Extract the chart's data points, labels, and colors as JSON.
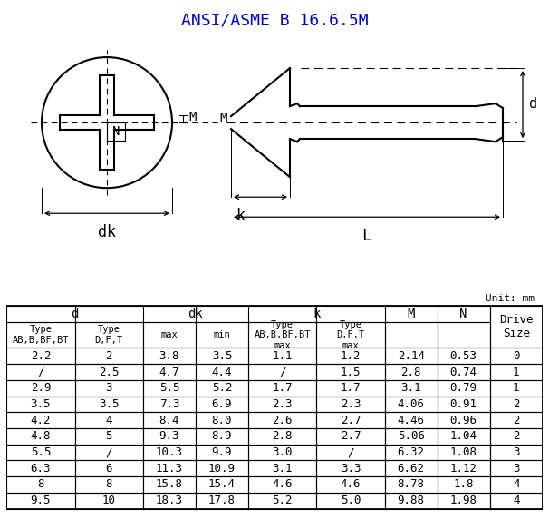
{
  "title": "ANSI/ASME B 16.6.5M",
  "title_color": "#0000CC",
  "unit_text": "Unit: mm",
  "background_color": "#FFFFFF",
  "table_data": [
    [
      "2.2",
      "2",
      "3.8",
      "3.5",
      "1.1",
      "1.2",
      "2.14",
      "0.53",
      "0"
    ],
    [
      "/",
      "2.5",
      "4.7",
      "4.4",
      "/",
      "1.5",
      "2.8",
      "0.74",
      "1"
    ],
    [
      "2.9",
      "3",
      "5.5",
      "5.2",
      "1.7",
      "1.7",
      "3.1",
      "0.79",
      "1"
    ],
    [
      "3.5",
      "3.5",
      "7.3",
      "6.9",
      "2.3",
      "2.3",
      "4.06",
      "0.91",
      "2"
    ],
    [
      "4.2",
      "4",
      "8.4",
      "8.0",
      "2.6",
      "2.7",
      "4.46",
      "0.96",
      "2"
    ],
    [
      "4.8",
      "5",
      "9.3",
      "8.9",
      "2.8",
      "2.7",
      "5.06",
      "1.04",
      "2"
    ],
    [
      "5.5",
      "/",
      "10.3",
      "9.9",
      "3.0",
      "/",
      "6.32",
      "1.08",
      "3"
    ],
    [
      "6.3",
      "6",
      "11.3",
      "10.9",
      "3.1",
      "3.3",
      "6.62",
      "1.12",
      "3"
    ],
    [
      "8",
      "8",
      "15.8",
      "15.4",
      "4.6",
      "4.6",
      "8.78",
      "1.8",
      "4"
    ],
    [
      "9.5",
      "10",
      "18.3",
      "17.8",
      "5.2",
      "5.0",
      "9.88",
      "1.98",
      "4"
    ]
  ]
}
